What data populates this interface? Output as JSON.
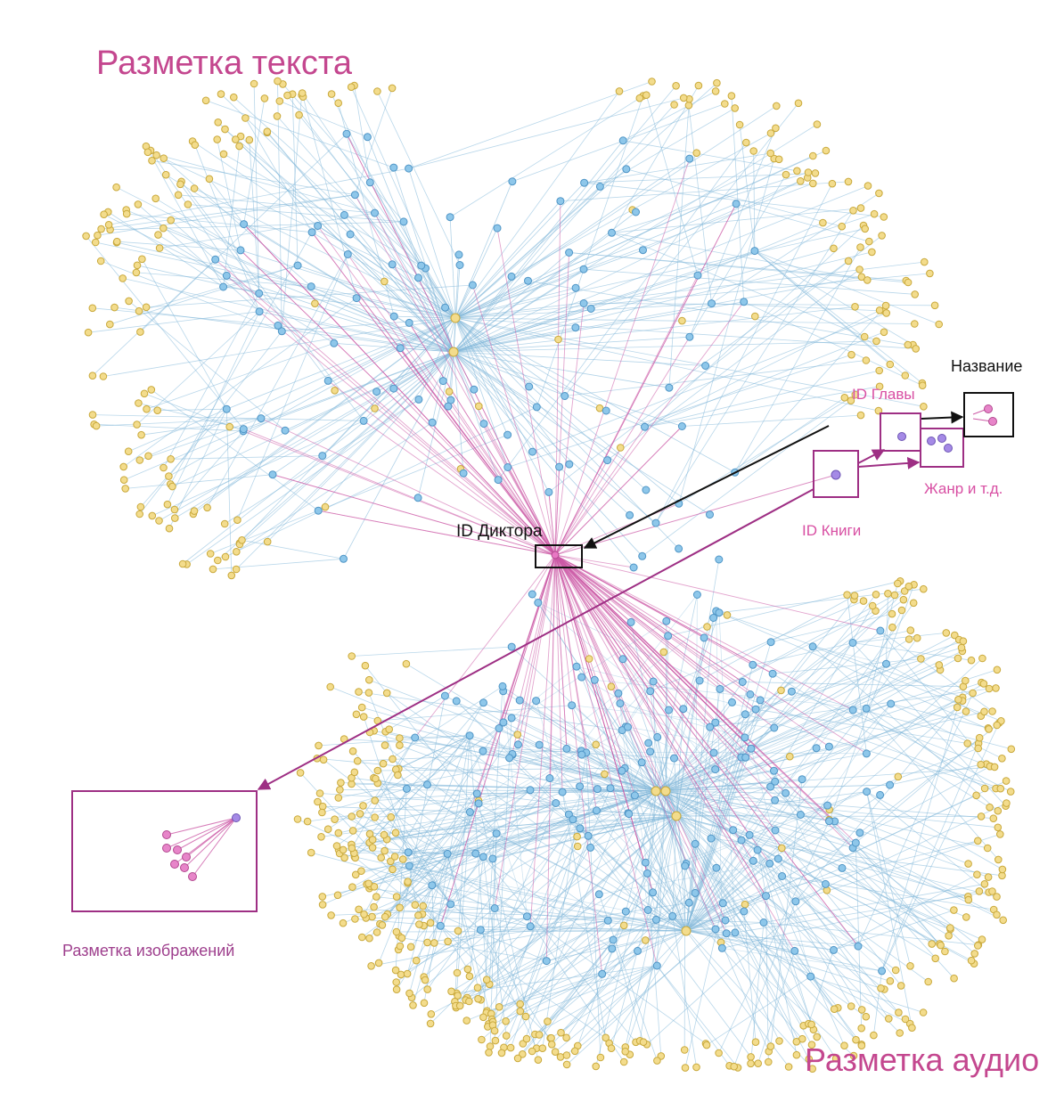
{
  "labels": {
    "text_markup": "Разметка текста",
    "audio_markup": "Разметка аудио",
    "image_markup": "Разметка изображений",
    "speaker_id": "ID Диктора",
    "title": "Название",
    "chapter_id": "ID Главы",
    "book_id": "ID Книги",
    "genre": "Жанр и т.д."
  },
  "colors": {
    "leaf_node": "#f3dc8c",
    "leaf_stroke": "#c9a93c",
    "hub_node": "#8ec7ea",
    "hub_stroke": "#4f95c6",
    "blue_edge": "#7fb6d9",
    "pink_edge": "#cc5aa6",
    "center_node": "#e878c4",
    "meta_node_purple": "#a58ae6",
    "meta_node_pink": "#e785c9",
    "box_purple": "#9e2f84",
    "box_black": "#111111",
    "text_pink": "#c4478f"
  }
}
